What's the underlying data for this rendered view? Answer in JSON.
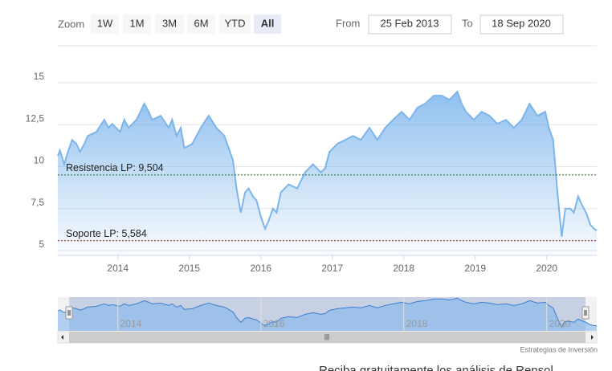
{
  "controls": {
    "zoom_label": "Zoom",
    "buttons": [
      "1W",
      "1M",
      "3M",
      "6M",
      "YTD",
      "All"
    ],
    "selected": 5,
    "from_label": "From",
    "from": "25 Feb 2013",
    "to_label": "To",
    "to": "18 Sep 2020"
  },
  "chart_data": {
    "type": "line",
    "color": "#7cb5ec",
    "x": [
      2013.16,
      2013.19,
      2013.25,
      2013.3,
      2013.36,
      2013.42,
      2013.47,
      2013.53,
      2013.58,
      2013.7,
      2013.81,
      2013.87,
      2013.92,
      2014.03,
      2014.09,
      2014.15,
      2014.26,
      2014.37,
      2014.43,
      2014.48,
      2014.6,
      2014.71,
      2014.76,
      2014.82,
      2014.88,
      2014.93,
      2015.04,
      2015.16,
      2015.27,
      2015.38,
      2015.49,
      2015.61,
      2015.66,
      2015.72,
      2015.78,
      2015.83,
      2015.89,
      2015.94,
      2016.0,
      2016.06,
      2016.11,
      2016.17,
      2016.22,
      2016.28,
      2016.39,
      2016.51,
      2016.62,
      2016.73,
      2016.84,
      2016.9,
      2016.96,
      2017.07,
      2017.18,
      2017.29,
      2017.4,
      2017.52,
      2017.63,
      2017.74,
      2017.85,
      2017.97,
      2018.08,
      2018.19,
      2018.3,
      2018.42,
      2018.53,
      2018.64,
      2018.75,
      2018.81,
      2018.87,
      2018.98,
      2019.09,
      2019.2,
      2019.31,
      2019.43,
      2019.54,
      2019.65,
      2019.76,
      2019.87,
      2019.98,
      2020.03,
      2020.09,
      2020.15,
      2020.21,
      2020.26,
      2020.33,
      2020.38,
      2020.44,
      2020.49,
      2020.55,
      2020.61,
      2020.66,
      2020.7
    ],
    "values": [
      10.63,
      10.96,
      10.14,
      10.87,
      11.59,
      11.35,
      10.87,
      11.35,
      11.83,
      12.07,
      12.79,
      12.31,
      12.55,
      12.07,
      12.79,
      12.31,
      12.79,
      13.75,
      13.27,
      12.79,
      13.03,
      12.31,
      12.79,
      11.83,
      12.31,
      11.11,
      11.35,
      12.31,
      13.03,
      12.31,
      11.83,
      10.38,
      8.7,
      7.26,
      8.46,
      8.7,
      8.22,
      7.98,
      7.02,
      6.3,
      6.78,
      7.5,
      7.26,
      8.46,
      8.94,
      8.7,
      9.66,
      10.14,
      9.66,
      9.9,
      10.87,
      11.35,
      11.59,
      11.83,
      11.59,
      12.31,
      11.59,
      12.31,
      12.79,
      13.27,
      12.79,
      13.51,
      13.75,
      14.23,
      14.23,
      13.99,
      14.47,
      13.75,
      13.27,
      12.79,
      13.27,
      13.03,
      12.55,
      12.79,
      12.31,
      12.79,
      13.75,
      13.03,
      13.27,
      12.31,
      11.59,
      8.46,
      5.82,
      7.5,
      7.5,
      7.26,
      8.22,
      7.74,
      7.26,
      6.54,
      6.3,
      6.2
    ],
    "xlim": [
      2013.16,
      2020.7
    ],
    "xticks": [
      2014,
      2015,
      2016,
      2017,
      2018,
      2019,
      2020
    ],
    "ylim": [
      4.71,
      17.2
    ],
    "yticks": [
      5,
      {
        "value": 7.5,
        "label": "7,5"
      },
      10,
      {
        "value": 12.5,
        "label": "12,5"
      },
      15
    ],
    "grid": true,
    "plot_lines": [
      {
        "label": "Resistencia LP: 9,504",
        "value": 9.504,
        "color": "#1e6b1e"
      },
      {
        "label": "Soporte LP: 5,584",
        "value": 5.584,
        "color": "#8b1a1a"
      }
    ],
    "navigator_xticks": [
      2014,
      2016,
      2018,
      2020
    ],
    "credit": "Estrategias de Inversión"
  },
  "footer": "Reciba gratuitamente los análisis de Repsol"
}
